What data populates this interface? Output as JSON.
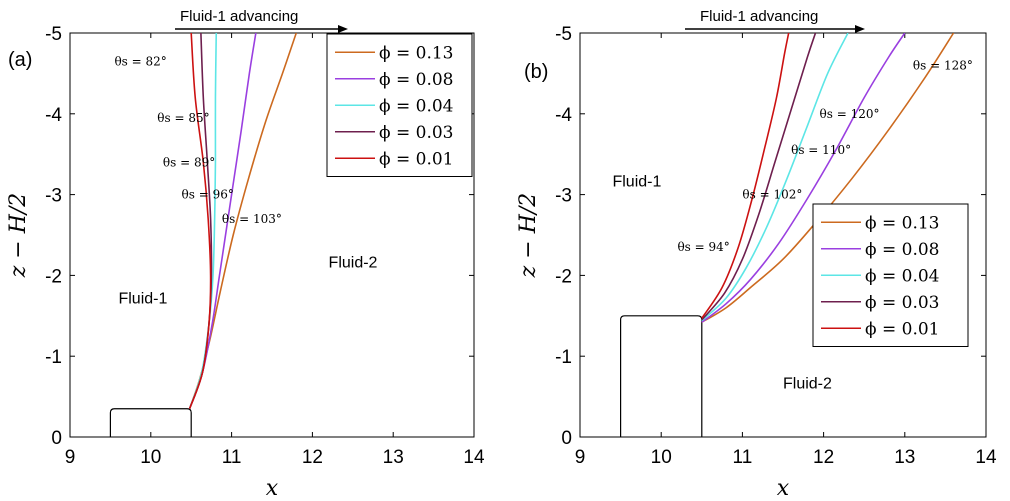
{
  "chart_data": [
    {
      "type": "line",
      "panel_label": "(a)",
      "banner": "Fluid-1 advancing",
      "xlabel": "x",
      "ylabel": "z − H/2",
      "xlim": [
        9,
        14
      ],
      "ylim": [
        0,
        5
      ],
      "y_reversed": true,
      "x_ticks": [
        "9",
        "10",
        "11",
        "12",
        "13",
        "14"
      ],
      "y_ticks": [
        "0",
        "-1",
        "-2",
        "-3",
        "-4",
        "-5"
      ],
      "grid": false,
      "legend_position": "top-right",
      "regions": [
        {
          "text": "Fluid-1",
          "x": 9.6,
          "y": 1.65
        },
        {
          "text": "Fluid-2",
          "x": 12.2,
          "y": 2.1
        }
      ],
      "obstacle": {
        "x0": 9.5,
        "x1": 10.5,
        "height": 0.35
      },
      "series": [
        {
          "name": "ϕ = 0.13",
          "color": "#cc6a1f",
          "x": [
            10.48,
            10.6,
            10.73,
            10.86,
            11.02,
            11.21,
            11.42,
            11.63,
            11.8
          ],
          "y": [
            0.35,
            0.7,
            1.2,
            1.8,
            2.5,
            3.2,
            3.9,
            4.5,
            5.0
          ]
        },
        {
          "name": "ϕ = 0.08",
          "color": "#9a3fe0",
          "x": [
            10.48,
            10.64,
            10.76,
            10.85,
            10.94,
            11.03,
            11.12,
            11.22,
            11.3
          ],
          "y": [
            0.35,
            0.8,
            1.4,
            2.0,
            2.6,
            3.2,
            3.8,
            4.5,
            5.0
          ]
        },
        {
          "name": "ϕ = 0.04",
          "color": "#5ce6e6",
          "x": [
            10.48,
            10.63,
            10.72,
            10.77,
            10.79,
            10.8,
            10.8,
            10.81
          ],
          "y": [
            0.35,
            0.8,
            1.4,
            2.0,
            2.7,
            3.4,
            4.2,
            5.0
          ]
        },
        {
          "name": "ϕ = 0.03",
          "color": "#6e1f4e",
          "x": [
            10.48,
            10.64,
            10.72,
            10.75,
            10.74,
            10.7,
            10.65,
            10.62
          ],
          "y": [
            0.35,
            0.8,
            1.4,
            2.0,
            2.7,
            3.4,
            4.2,
            5.0
          ]
        },
        {
          "name": "ϕ = 0.01",
          "color": "#cc1111",
          "x": [
            10.48,
            10.64,
            10.72,
            10.74,
            10.71,
            10.65,
            10.55,
            10.5
          ],
          "y": [
            0.35,
            0.8,
            1.4,
            2.0,
            2.7,
            3.4,
            4.2,
            5.0
          ]
        }
      ],
      "annotations": [
        {
          "text": "θs = 82°",
          "x": 9.55,
          "y": 4.6
        },
        {
          "text": "θs = 85°",
          "x": 10.08,
          "y": 3.9
        },
        {
          "text": "θs = 89°",
          "x": 10.15,
          "y": 3.35
        },
        {
          "text": "θs = 96°",
          "x": 10.38,
          "y": 2.95
        },
        {
          "text": "θs = 103°",
          "x": 10.88,
          "y": 2.65
        }
      ]
    },
    {
      "type": "line",
      "panel_label": "(b)",
      "banner": "Fluid-1 advancing",
      "xlabel": "x",
      "ylabel": "z − H/2",
      "xlim": [
        9,
        14
      ],
      "ylim": [
        0,
        5
      ],
      "y_reversed": true,
      "x_ticks": [
        "9",
        "10",
        "11",
        "12",
        "13",
        "14"
      ],
      "y_ticks": [
        "0",
        "-1",
        "-2",
        "-3",
        "-4",
        "-5"
      ],
      "grid": false,
      "legend_position": "bottom-right",
      "regions": [
        {
          "text": "Fluid-1",
          "x": 9.4,
          "y": 3.1
        },
        {
          "text": "Fluid-2",
          "x": 11.5,
          "y": 0.6
        }
      ],
      "obstacle": {
        "x0": 9.5,
        "x1": 10.5,
        "height": 1.5
      },
      "series": [
        {
          "name": "ϕ = 0.13",
          "color": "#cc6a1f",
          "x": [
            10.5,
            10.8,
            11.1,
            11.5,
            11.9,
            12.35,
            12.8,
            13.25,
            13.6
          ],
          "y": [
            1.42,
            1.6,
            1.85,
            2.2,
            2.65,
            3.2,
            3.8,
            4.45,
            5.0
          ]
        },
        {
          "name": "ϕ = 0.08",
          "color": "#9a3fe0",
          "x": [
            10.5,
            10.8,
            11.1,
            11.45,
            11.8,
            12.15,
            12.5,
            12.8,
            13.0
          ],
          "y": [
            1.42,
            1.65,
            1.95,
            2.4,
            2.95,
            3.55,
            4.2,
            4.7,
            5.0
          ]
        },
        {
          "name": "ϕ = 0.04",
          "color": "#5ce6e6",
          "x": [
            10.5,
            10.8,
            11.05,
            11.3,
            11.55,
            11.8,
            12.05,
            12.3
          ],
          "y": [
            1.44,
            1.72,
            2.1,
            2.6,
            3.2,
            3.85,
            4.5,
            5.0
          ]
        },
        {
          "name": "ϕ = 0.03",
          "color": "#6e1f4e",
          "x": [
            10.5,
            10.78,
            11.0,
            11.2,
            11.4,
            11.6,
            11.8,
            11.9
          ],
          "y": [
            1.45,
            1.78,
            2.2,
            2.75,
            3.4,
            4.05,
            4.7,
            5.0
          ]
        },
        {
          "name": "ϕ = 0.01",
          "color": "#cc1111",
          "x": [
            10.5,
            10.75,
            10.95,
            11.12,
            11.28,
            11.42,
            11.52,
            11.57
          ],
          "y": [
            1.47,
            1.85,
            2.35,
            2.95,
            3.6,
            4.2,
            4.75,
            5.0
          ]
        }
      ],
      "annotations": [
        {
          "text": "θs = 94°",
          "x": 10.2,
          "y": 2.3
        },
        {
          "text": "θs = 102°",
          "x": 11.0,
          "y": 2.95
        },
        {
          "text": "θs = 110°",
          "x": 11.6,
          "y": 3.5
        },
        {
          "text": "θs = 120°",
          "x": 11.95,
          "y": 3.95
        },
        {
          "text": "θs = 128°",
          "x": 13.1,
          "y": 4.55
        }
      ]
    }
  ]
}
